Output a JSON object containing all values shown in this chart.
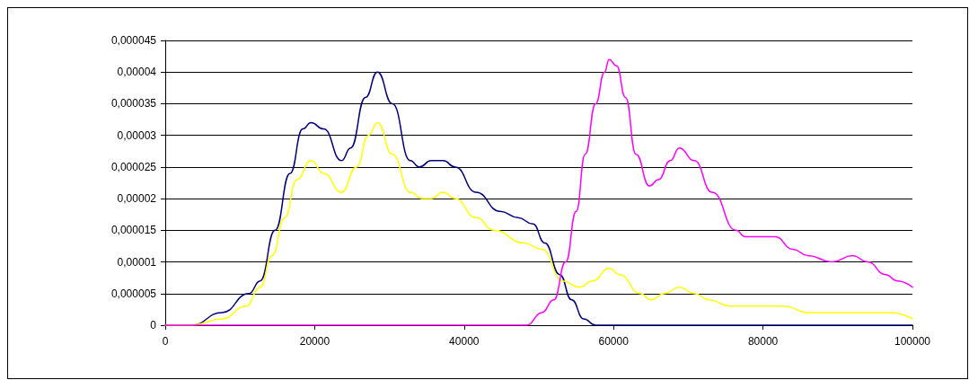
{
  "chart_data": {
    "type": "line",
    "xlim": [
      0,
      100000
    ],
    "xticks": [
      0,
      20000,
      40000,
      60000,
      80000,
      100000
    ],
    "ylim": [
      0,
      4.5e-05
    ],
    "yticks": [
      0,
      {
        "value": 5e-06,
        "label": "0,000005"
      },
      {
        "value": 1e-05,
        "label": "0,00001"
      },
      {
        "value": 1.5e-05,
        "label": "0,000015"
      },
      {
        "value": 2e-05,
        "label": "0,00002"
      },
      {
        "value": 2.5e-05,
        "label": "0,000025"
      },
      {
        "value": 3e-05,
        "label": "0,00003"
      },
      {
        "value": 3.5e-05,
        "label": "0,000035"
      },
      {
        "value": 4e-05,
        "label": "0,00004"
      },
      {
        "value": 4.5e-05,
        "label": "0,000045"
      }
    ],
    "grid": "y",
    "marker": "none",
    "line_style": "solid",
    "series": [
      {
        "color": "#000080",
        "x": [
          0,
          3500,
          7600,
          11200,
          12700,
          14700,
          16700,
          18400,
          19500,
          21200,
          23600,
          24800,
          26800,
          28400,
          30400,
          32800,
          34000,
          35600,
          37200,
          38800,
          41600,
          44800,
          47200,
          49200,
          50800,
          52800,
          54400,
          56000,
          57600,
          60000,
          80000,
          100000
        ],
        "values": [
          0,
          0,
          2e-06,
          5e-06,
          7e-06,
          1.5e-05,
          2.4e-05,
          3.1e-05,
          3.2e-05,
          3.1e-05,
          2.6e-05,
          2.8e-05,
          3.6e-05,
          4e-05,
          3.5e-05,
          2.6e-05,
          2.5e-05,
          2.6e-05,
          2.6e-05,
          2.5e-05,
          2.1e-05,
          1.8e-05,
          1.7e-05,
          1.6e-05,
          1.3e-05,
          8e-06,
          4e-06,
          1e-06,
          0,
          0,
          0,
          0
        ]
      },
      {
        "color": "#ffff00",
        "x": [
          0,
          3500,
          7600,
          10800,
          12700,
          14300,
          16000,
          17600,
          19500,
          21200,
          23600,
          25600,
          27200,
          28400,
          30400,
          32800,
          34400,
          35600,
          37200,
          38800,
          41600,
          44000,
          48000,
          50400,
          53200,
          55400,
          57200,
          59400,
          60800,
          63600,
          65000,
          66800,
          68800,
          70800,
          72800,
          75600,
          78000,
          82800,
          86000,
          94400,
          97200,
          100000
        ],
        "values": [
          0,
          0,
          1e-06,
          3e-06,
          6e-06,
          1.1e-05,
          1.7e-05,
          2.3e-05,
          2.6e-05,
          2.4e-05,
          2.1e-05,
          2.5e-05,
          3e-05,
          3.2e-05,
          2.7e-05,
          2.1e-05,
          2e-05,
          2e-05,
          2.1e-05,
          2e-05,
          1.7e-05,
          1.5e-05,
          1.3e-05,
          1.2e-05,
          7e-06,
          6e-06,
          7e-06,
          9e-06,
          8e-06,
          5e-06,
          4e-06,
          5e-06,
          6e-06,
          5e-06,
          4e-06,
          3e-06,
          3e-06,
          3e-06,
          2e-06,
          2e-06,
          2e-06,
          1e-06
        ]
      },
      {
        "color": "#ff00ff",
        "x": [
          0,
          46000,
          48400,
          50400,
          52000,
          53600,
          55000,
          56200,
          57600,
          58800,
          59400,
          60400,
          61600,
          63000,
          64800,
          66000,
          67600,
          68800,
          70800,
          73200,
          76400,
          77600,
          78800,
          81600,
          84000,
          86000,
          89200,
          92000,
          94000,
          96400,
          98000,
          100000
        ],
        "values": [
          0,
          0,
          0,
          2e-06,
          4e-06,
          1e-05,
          1.8e-05,
          2.7e-05,
          3.5e-05,
          4e-05,
          4.2e-05,
          4.1e-05,
          3.6e-05,
          2.7e-05,
          2.2e-05,
          2.3e-05,
          2.6e-05,
          2.8e-05,
          2.6e-05,
          2.1e-05,
          1.5e-05,
          1.4e-05,
          1.4e-05,
          1.4e-05,
          1.2e-05,
          1.1e-05,
          1e-05,
          1.1e-05,
          1e-05,
          8e-06,
          7e-06,
          6e-06
        ]
      }
    ]
  }
}
